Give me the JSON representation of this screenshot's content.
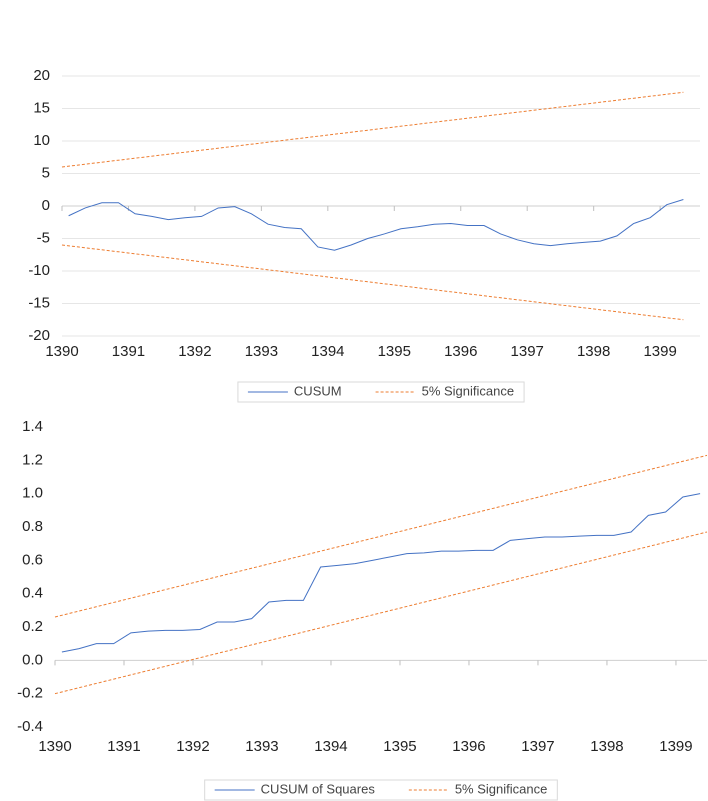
{
  "chart_data": [
    {
      "type": "line",
      "series": [
        {
          "name": "CUSUM",
          "color": "#4472c4",
          "x": [
            1390.1,
            1390.35,
            1390.6,
            1390.85,
            1391.1,
            1391.35,
            1391.6,
            1391.85,
            1392.1,
            1392.35,
            1392.6,
            1392.85,
            1393.1,
            1393.35,
            1393.6,
            1393.85,
            1394.1,
            1394.35,
            1394.6,
            1394.85,
            1395.1,
            1395.35,
            1395.6,
            1395.85,
            1396.1,
            1396.35,
            1396.6,
            1396.85,
            1397.1,
            1397.35,
            1397.6,
            1397.85,
            1398.1,
            1398.35,
            1398.6,
            1398.85,
            1399.1,
            1399.35
          ],
          "values": [
            -1.5,
            -0.3,
            0.5,
            0.5,
            -1.2,
            -1.6,
            -2.1,
            -1.8,
            -1.6,
            -0.3,
            -0.1,
            -1.2,
            -2.8,
            -3.3,
            -3.5,
            -6.3,
            -6.8,
            -6,
            -5,
            -4.3,
            -3.5,
            -3.2,
            -2.8,
            -2.7,
            -3,
            -3,
            -4.3,
            -5.2,
            -5.8,
            -6.1,
            -5.8,
            -5.6,
            -5.4,
            -4.6,
            -2.7,
            -1.8,
            0.2,
            1
          ]
        },
        {
          "name": "5% Significance",
          "color": "#ed7d31",
          "dashed": true,
          "x": [
            1390,
            1399.35
          ],
          "values": [
            6,
            17.5
          ]
        },
        {
          "color": "#ed7d31",
          "dashed": true,
          "x": [
            1390,
            1399.35
          ],
          "values": [
            -6,
            -17.5
          ]
        }
      ],
      "xlim": [
        1390,
        1399.6
      ],
      "xticks": [
        1390,
        1391,
        1392,
        1393,
        1394,
        1395,
        1396,
        1397,
        1398,
        1399
      ],
      "ylim": [
        -20,
        20
      ],
      "yticks": [
        -20,
        -15,
        -10,
        -5,
        0,
        5,
        10,
        15,
        20
      ],
      "grid": true
    },
    {
      "type": "line",
      "series": [
        {
          "name": "CUSUM of Squares",
          "color": "#4472c4",
          "x": [
            1390.1,
            1390.35,
            1390.6,
            1390.85,
            1391.1,
            1391.35,
            1391.6,
            1391.85,
            1392.1,
            1392.35,
            1392.6,
            1392.85,
            1393.1,
            1393.35,
            1393.6,
            1393.85,
            1394.1,
            1394.35,
            1394.6,
            1394.85,
            1395.1,
            1395.35,
            1395.6,
            1395.85,
            1396.1,
            1396.35,
            1396.6,
            1396.85,
            1397.1,
            1397.35,
            1397.6,
            1397.85,
            1398.1,
            1398.35,
            1398.6,
            1398.85,
            1399.1,
            1399.35
          ],
          "values": [
            0.05,
            0.07,
            0.1,
            0.1,
            0.165,
            0.175,
            0.18,
            0.18,
            0.185,
            0.23,
            0.23,
            0.25,
            0.35,
            0.36,
            0.36,
            0.56,
            0.57,
            0.58,
            0.6,
            0.62,
            0.64,
            0.645,
            0.655,
            0.655,
            0.66,
            0.66,
            0.72,
            0.73,
            0.74,
            0.74,
            0.745,
            0.75,
            0.75,
            0.77,
            0.87,
            0.89,
            0.98,
            1
          ]
        },
        {
          "name": "5% Significance",
          "color": "#ed7d31",
          "dashed": true,
          "x": [
            1390,
            1399.45
          ],
          "values": [
            0.26,
            1.23
          ]
        },
        {
          "color": "#ed7d31",
          "dashed": true,
          "x": [
            1390,
            1399.45
          ],
          "values": [
            -0.2,
            0.77
          ]
        }
      ],
      "xlim": [
        1390,
        1399.45
      ],
      "xticks": [
        1390,
        1391,
        1392,
        1393,
        1394,
        1395,
        1396,
        1397,
        1398,
        1399
      ],
      "ylim": [
        -0.4,
        1.4
      ],
      "yticks": [
        -0.4,
        -0.2,
        {
          "value": 0,
          "label": "0.0"
        },
        0.2,
        0.4,
        0.6,
        0.8,
        {
          "value": 1,
          "label": "1.0"
        },
        1.2,
        1.4
      ],
      "grid": false
    }
  ]
}
